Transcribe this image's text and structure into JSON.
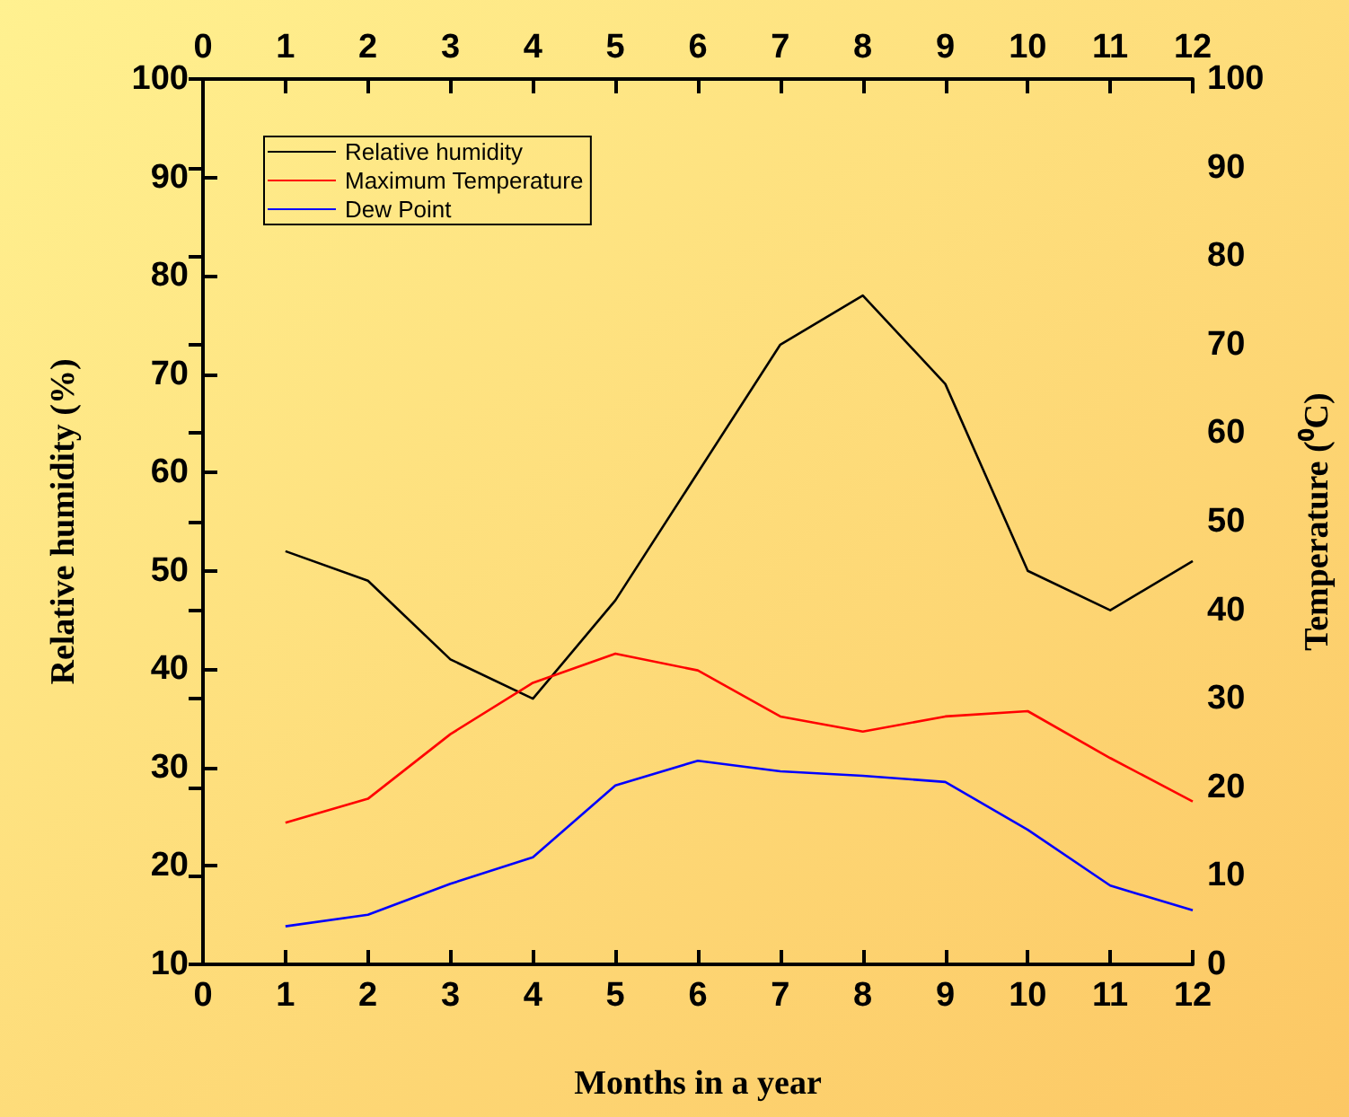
{
  "chart_data": {
    "type": "line",
    "xlabel": "Months in a year",
    "ylabel": "Relative humidity (%)",
    "y2label": "Temperature (⁰C)",
    "x": [
      1,
      2,
      3,
      4,
      5,
      6,
      7,
      8,
      9,
      10,
      11,
      12
    ],
    "series": [
      {
        "name": "Relative humidity",
        "color": "#000000",
        "values": [
          52,
          49,
          41,
          37,
          47,
          60,
          73,
          78,
          69,
          50,
          46,
          51
        ]
      },
      {
        "name": "Maximum Temperature",
        "color": "#ff0000",
        "axis": "y2",
        "values": [
          16.0,
          18.7,
          26.0,
          31.8,
          35.1,
          33.2,
          28.0,
          26.3,
          28.0,
          28.6,
          23.3,
          18.4
        ]
      },
      {
        "name": "Dew Point",
        "color": "#0000ff",
        "axis": "y2",
        "values": [
          4.3,
          5.6,
          9.1,
          12.1,
          20.2,
          23.0,
          21.8,
          21.3,
          20.6,
          15.2,
          8.9,
          6.1
        ]
      }
    ],
    "xlim": [
      0,
      12
    ],
    "xticks": [
      0,
      1,
      2,
      3,
      4,
      5,
      6,
      7,
      8,
      9,
      10,
      11,
      12
    ],
    "x2lim": [
      0,
      12
    ],
    "x2ticks": [
      0,
      1,
      2,
      3,
      4,
      5,
      6,
      7,
      8,
      9,
      10,
      11,
      12
    ],
    "ylim": [
      10,
      100
    ],
    "yticks": [
      10,
      20,
      30,
      40,
      50,
      60,
      70,
      80,
      90,
      100
    ],
    "y2lim": [
      0,
      100
    ],
    "y2ticks": [
      0,
      10,
      20,
      30,
      40,
      50,
      60,
      70,
      80,
      90,
      100
    ],
    "grid": false,
    "legend": "top left",
    "marker": "none",
    "line_style": "solid"
  }
}
